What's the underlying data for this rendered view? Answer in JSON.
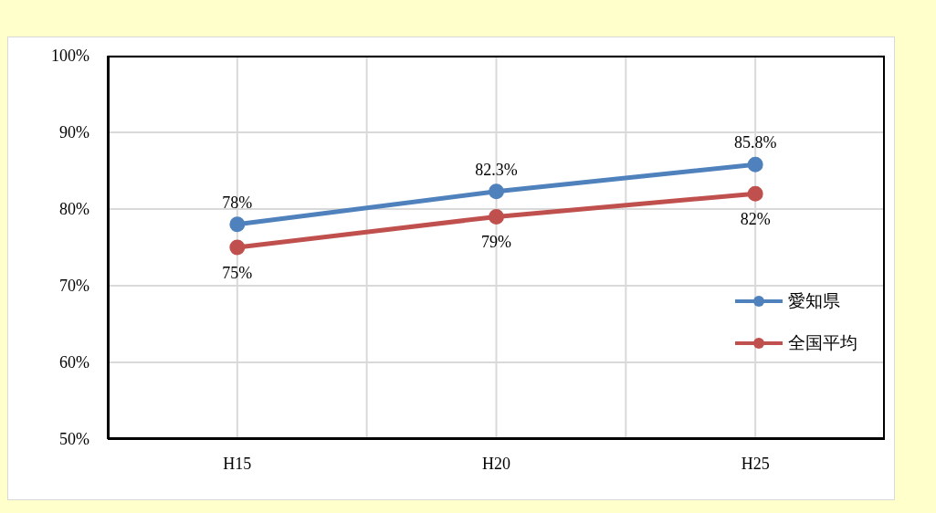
{
  "chart_data": {
    "type": "line",
    "categories": [
      "H15",
      "H20",
      "H25"
    ],
    "series": [
      {
        "name": "愛知県",
        "color": "#4f81bd",
        "values": [
          78,
          82.3,
          85.8
        ],
        "value_labels": [
          "78%",
          "82.3%",
          "85.8%"
        ]
      },
      {
        "name": "全国平均",
        "color": "#c0504d",
        "values": [
          75,
          79,
          82
        ],
        "value_labels": [
          "75%",
          "79%",
          "82%"
        ]
      }
    ],
    "ylim": [
      50,
      100
    ],
    "yticks": [
      {
        "value": 50,
        "label": "50%"
      },
      {
        "value": 60,
        "label": "60%"
      },
      {
        "value": 70,
        "label": "70%"
      },
      {
        "value": 80,
        "label": "80%"
      },
      {
        "value": 90,
        "label": "90%"
      },
      {
        "value": 100,
        "label": "100%"
      }
    ],
    "grid": true,
    "legend": "bottom right",
    "marker": "circle",
    "line_style": "solid"
  }
}
